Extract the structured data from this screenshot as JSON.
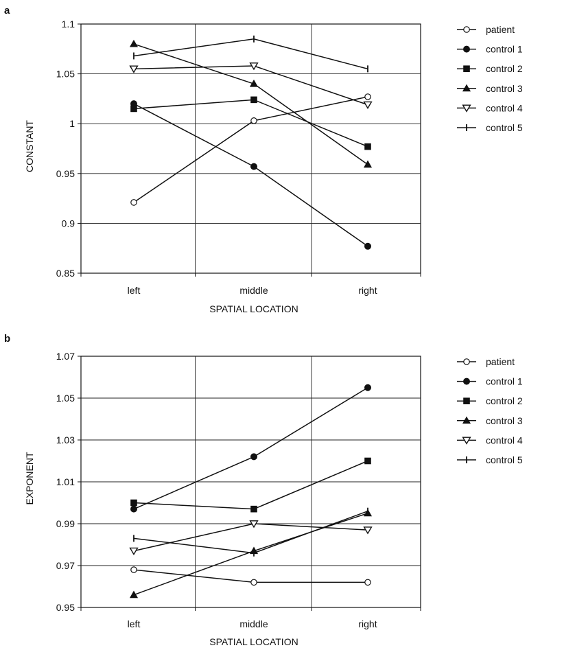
{
  "chart_data": [
    {
      "panel": "a",
      "type": "line",
      "categories": [
        "left",
        "middle",
        "right"
      ],
      "xlabel": "SPATIAL LOCATION",
      "ylabel": "CONSTANT",
      "ylim": [
        0.85,
        1.1
      ],
      "yticks": [
        "1.1",
        "1.05",
        "1",
        "0.95",
        "0.9",
        "0.85"
      ],
      "grid": true,
      "legend_placement": "right",
      "series": [
        {
          "name": "patient",
          "marker": "circle-open",
          "values": [
            0.921,
            1.003,
            1.027
          ]
        },
        {
          "name": "control 1",
          "marker": "circle-filled",
          "values": [
            1.02,
            0.957,
            0.877
          ]
        },
        {
          "name": "control 2",
          "marker": "square",
          "values": [
            1.015,
            1.024,
            0.977
          ]
        },
        {
          "name": "control 3",
          "marker": "triangle-up",
          "values": [
            1.08,
            1.04,
            0.959
          ]
        },
        {
          "name": "control 4",
          "marker": "triangle-down",
          "values": [
            1.055,
            1.058,
            1.019
          ]
        },
        {
          "name": "control 5",
          "marker": "tick",
          "values": [
            1.068,
            1.085,
            1.055
          ]
        }
      ]
    },
    {
      "panel": "b",
      "type": "line",
      "categories": [
        "left",
        "middle",
        "right"
      ],
      "xlabel": "SPATIAL LOCATION",
      "ylabel": "EXPONENT",
      "ylim": [
        0.95,
        1.07
      ],
      "yticks": [
        "1.07",
        "1.05",
        "1.03",
        "1.01",
        "0.99",
        "0.97",
        "0.95"
      ],
      "grid": true,
      "legend_placement": "right",
      "series": [
        {
          "name": "patient",
          "marker": "circle-open",
          "values": [
            0.968,
            0.962,
            0.962
          ]
        },
        {
          "name": "control 1",
          "marker": "circle-filled",
          "values": [
            0.997,
            1.022,
            1.055
          ]
        },
        {
          "name": "control 2",
          "marker": "square",
          "values": [
            1.0,
            0.997,
            1.02
          ]
        },
        {
          "name": "control 3",
          "marker": "triangle-up",
          "values": [
            0.956,
            0.977,
            0.995
          ]
        },
        {
          "name": "control 4",
          "marker": "triangle-down",
          "values": [
            0.977,
            0.99,
            0.987
          ]
        },
        {
          "name": "control 5",
          "marker": "tick",
          "values": [
            0.983,
            0.976,
            0.996
          ]
        }
      ]
    }
  ]
}
